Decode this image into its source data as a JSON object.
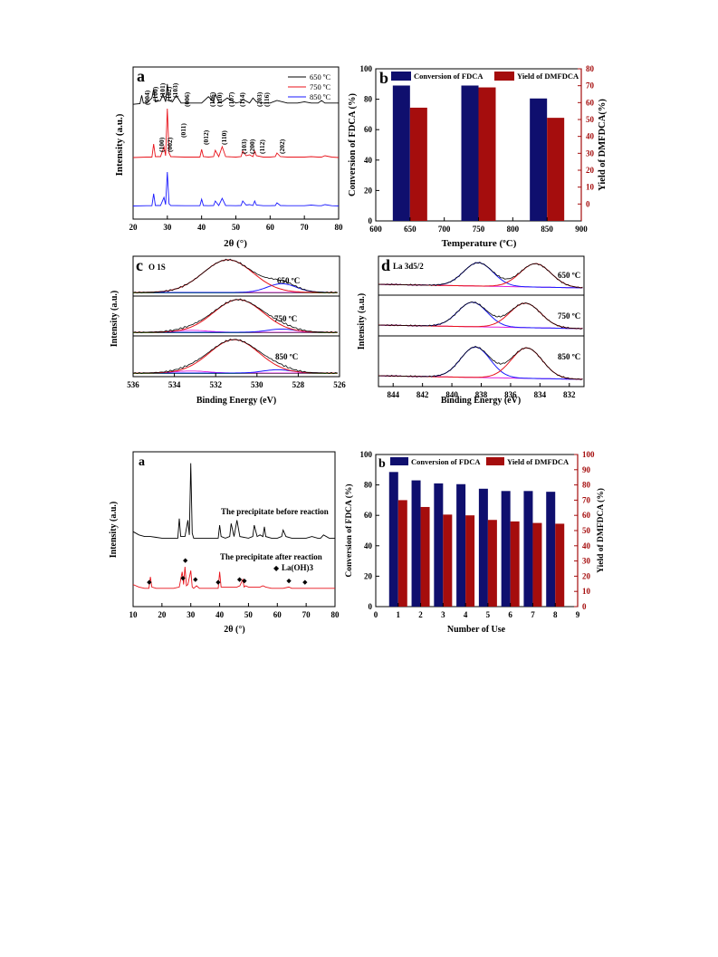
{
  "chart_data": [
    {
      "id": "top_a",
      "type": "line",
      "panel_letter": "a",
      "xlabel": "2θ (°)",
      "ylabel": "Intensity (a.u.)",
      "xlim": [
        20,
        80
      ],
      "xticks": [
        20,
        30,
        40,
        50,
        60,
        70,
        80
      ],
      "legend_position": "top-right",
      "series": [
        {
          "name": "650 ºC",
          "color": "#000000",
          "x": [
            20,
            22,
            22.5,
            23,
            24,
            25.5,
            26,
            26.5,
            28,
            28.7,
            29.5,
            30,
            30.5,
            31.5,
            32.6,
            34,
            36,
            40,
            42,
            43.5,
            44,
            45,
            46,
            47.5,
            50,
            51.5,
            52,
            54,
            55,
            56,
            58,
            60,
            62,
            65,
            68,
            70,
            72,
            74,
            75,
            76,
            78,
            80
          ],
          "y": [
            0.2,
            0.25,
            0.9,
            0.3,
            0.3,
            0.7,
            1.4,
            0.4,
            0.5,
            1.0,
            0.4,
            1.8,
            0.5,
            0.4,
            0.9,
            0.3,
            0.3,
            0.3,
            0.8,
            0.4,
            1.0,
            0.4,
            0.4,
            0.7,
            0.3,
            0.4,
            0.6,
            0.3,
            0.7,
            0.4,
            0.3,
            0.3,
            0.5,
            0.3,
            0.3,
            0.4,
            0.3,
            0.3,
            0.5,
            0.3,
            0.3,
            0.3
          ]
        },
        {
          "name": "750 ºC",
          "color": "#e8121a",
          "x": [
            20,
            24,
            25.5,
            26,
            26.5,
            28,
            29,
            29.5,
            30,
            30.5,
            31,
            35,
            38,
            39.5,
            40,
            40.5,
            42,
            43.5,
            44,
            45,
            46,
            47,
            50,
            51.5,
            52,
            53,
            54,
            55,
            55.5,
            56,
            58,
            60,
            61.5,
            62,
            63,
            65,
            70,
            72,
            74,
            75,
            76,
            78,
            80
          ],
          "y": [
            0.1,
            0.15,
            0.15,
            1.6,
            0.2,
            0.2,
            1.3,
            0.3,
            5.5,
            0.6,
            0.2,
            0.15,
            0.15,
            0.15,
            1.0,
            0.2,
            0.15,
            0.2,
            0.9,
            0.2,
            1.3,
            0.2,
            0.15,
            0.2,
            0.8,
            0.3,
            0.4,
            0.2,
            0.8,
            0.3,
            0.15,
            0.15,
            0.2,
            0.6,
            0.2,
            0.15,
            0.15,
            0.2,
            0.15,
            0.15,
            0.3,
            0.15,
            0.1
          ]
        },
        {
          "name": "850 ºC",
          "color": "#1a1aff",
          "x": [
            20,
            24,
            25.5,
            26,
            26.5,
            28,
            29,
            29.5,
            30,
            30.5,
            31,
            35,
            38,
            39.5,
            40,
            40.5,
            42,
            43.5,
            44,
            45,
            46,
            47,
            50,
            51.5,
            52,
            53,
            54,
            55,
            55.5,
            56,
            58,
            60,
            61.5,
            62,
            63,
            65,
            70,
            72,
            74,
            75,
            76,
            78,
            80
          ],
          "y": [
            0.05,
            0.08,
            0.08,
            1.4,
            0.1,
            0.1,
            1.0,
            0.2,
            3.8,
            0.3,
            0.1,
            0.08,
            0.08,
            0.08,
            0.8,
            0.1,
            0.08,
            0.1,
            0.6,
            0.1,
            0.9,
            0.1,
            0.08,
            0.1,
            0.6,
            0.15,
            0.2,
            0.1,
            0.6,
            0.15,
            0.08,
            0.08,
            0.1,
            0.4,
            0.1,
            0.08,
            0.08,
            0.15,
            0.08,
            0.08,
            0.2,
            0.08,
            0.05
          ]
        }
      ],
      "peak_labels_650": [
        "(004)",
        "(100)",
        "(101)",
        "(102)",
        "(103)",
        "(006)",
        "(106)",
        "(110)",
        "(107)",
        "(114)",
        "(203)",
        "(116)"
      ],
      "peak_labels_750": [
        "(100)",
        "(002)",
        "(011)",
        "(012)",
        "(110)",
        "(103)",
        "(200)",
        "(112)",
        "(202)"
      ]
    },
    {
      "id": "top_b",
      "type": "bar",
      "panel_letter": "b",
      "xlabel": "Temperature (ºC)",
      "ylabel_left": "Conversion of FDCA (%)",
      "ylabel_right": "Yield of DMFDCA(%)",
      "categories": [
        650,
        750,
        850
      ],
      "xlim": [
        600,
        900
      ],
      "xticks": [
        600,
        650,
        700,
        750,
        800,
        850,
        900
      ],
      "ylim_left": [
        0,
        100
      ],
      "yticks_left": [
        0,
        20,
        40,
        60,
        80,
        100
      ],
      "ylim_right": [
        -10,
        80
      ],
      "yticks_right": [
        0,
        10,
        20,
        30,
        40,
        50,
        60,
        70,
        80
      ],
      "series": [
        {
          "name": "Conversion of FDCA",
          "color": "#0f0f6e",
          "axis": "left",
          "values": [
            89,
            89,
            80.5
          ]
        },
        {
          "name": "Yield of DMFDCA",
          "color": "#a50d0d",
          "axis": "right",
          "values": [
            57,
            69,
            51
          ]
        }
      ]
    },
    {
      "id": "top_c",
      "type": "line",
      "panel_letter": "c",
      "panel_title": "O 1S",
      "xlabel": "Binding Energy (eV)",
      "ylabel": "Intensity (a.u.)",
      "xlim": [
        536,
        526
      ],
      "xticks": [
        536,
        534,
        532,
        530,
        528,
        526
      ],
      "subpanels": [
        {
          "label": "650 ºC",
          "main_peak_center": 531.4,
          "secondary_peak_center": 528.8
        },
        {
          "label": "750 ºC",
          "main_peak_center": 530.9,
          "secondary_peak_center": 528.8
        },
        {
          "label": "850 ºC",
          "main_peak_center": 531.1,
          "secondary_peak_center": 529.0
        }
      ]
    },
    {
      "id": "top_d",
      "type": "line",
      "panel_letter": "d",
      "panel_title": "La 3d5/2",
      "xlabel": "Binding Energy (eV)",
      "ylabel": "Intensity (a.u.)",
      "xlim": [
        845,
        831
      ],
      "xticks": [
        844,
        842,
        840,
        838,
        836,
        834,
        832
      ],
      "subpanels": [
        {
          "label": "650 ºC",
          "peak1_center": 838.2,
          "peak2_center": 834.3
        },
        {
          "label": "750 ºC",
          "peak1_center": 838.6,
          "peak2_center": 835.0
        },
        {
          "label": "850 ºC",
          "peak1_center": 838.4,
          "peak2_center": 834.9
        }
      ]
    },
    {
      "id": "bottom_a",
      "type": "line",
      "panel_letter": "a",
      "xlabel": "2θ (°)",
      "ylabel": "Intensity (a.u.)",
      "xlim": [
        10,
        80
      ],
      "xticks": [
        10,
        20,
        30,
        40,
        50,
        60,
        70,
        80
      ],
      "series": [
        {
          "name": "The precipitate before reaction",
          "color": "#000000",
          "x": [
            10,
            12,
            14,
            16,
            18,
            20,
            22,
            24,
            25.5,
            26,
            26.5,
            28,
            29,
            29.5,
            30,
            30.5,
            31,
            35,
            38,
            39.5,
            40,
            40.5,
            42,
            43.5,
            44,
            45,
            46,
            47,
            50,
            51.5,
            52,
            53,
            54,
            55,
            55.5,
            56,
            58,
            60,
            61.5,
            62,
            63,
            65,
            70,
            72,
            74,
            75,
            76,
            78,
            80
          ],
          "y": [
            0.6,
            0.4,
            0.3,
            0.3,
            0.25,
            0.2,
            0.2,
            0.2,
            0.2,
            1.4,
            0.3,
            0.3,
            1.3,
            0.4,
            4.8,
            0.5,
            0.2,
            0.2,
            0.2,
            0.2,
            1.0,
            0.3,
            0.2,
            0.3,
            1.1,
            0.3,
            1.3,
            0.3,
            0.2,
            0.3,
            1.0,
            0.3,
            0.4,
            0.3,
            0.9,
            0.3,
            0.2,
            0.2,
            0.3,
            0.7,
            0.3,
            0.2,
            0.2,
            0.3,
            0.2,
            0.2,
            0.4,
            0.2,
            0.2
          ]
        },
        {
          "name": "The precipitate after reaction",
          "color": "#e8121a",
          "x": [
            10,
            12,
            14,
            15.5,
            16,
            16.5,
            18,
            20,
            22,
            24,
            26,
            27,
            27.5,
            28,
            28.5,
            29,
            30,
            30.5,
            31,
            32,
            33,
            35,
            38,
            39.5,
            40,
            40.5,
            42,
            44,
            46,
            47,
            48,
            48.5,
            49,
            50,
            52,
            54,
            55,
            56,
            58,
            60,
            62,
            64,
            65,
            66,
            68,
            70,
            72,
            74,
            76,
            78,
            80
          ],
          "y": [
            0.6,
            0.4,
            0.3,
            0.3,
            1.2,
            0.4,
            0.3,
            0.3,
            0.3,
            0.3,
            0.4,
            1.6,
            0.6,
            2.0,
            0.5,
            0.6,
            1.7,
            0.4,
            0.3,
            0.5,
            0.3,
            0.3,
            0.3,
            0.3,
            1.6,
            0.4,
            0.4,
            0.4,
            0.4,
            0.5,
            1.0,
            0.4,
            0.5,
            0.4,
            0.4,
            0.4,
            0.5,
            0.4,
            0.3,
            0.3,
            0.3,
            0.4,
            0.3,
            0.3,
            0.3,
            0.3,
            0.3,
            0.3,
            0.3,
            0.3,
            0.3
          ]
        }
      ],
      "legend_marker_label": "La(OH)3",
      "marker_positions_2theta": [
        15.6,
        27.3,
        28.1,
        31.6,
        39.5,
        46.9,
        48.6,
        64,
        69.6
      ]
    },
    {
      "id": "bottom_b",
      "type": "bar",
      "panel_letter": "b",
      "xlabel": "Number of Use",
      "ylabel_left": "Conversion of FDCA (%)",
      "ylabel_right": "Yield of DMFDCA (%)",
      "categories": [
        1,
        2,
        3,
        4,
        5,
        6,
        7,
        8
      ],
      "xlim": [
        0,
        9
      ],
      "xticks": [
        0,
        1,
        2,
        3,
        4,
        5,
        6,
        7,
        8,
        9
      ],
      "ylim_left": [
        0,
        100
      ],
      "yticks_left": [
        0,
        20,
        40,
        60,
        80,
        100
      ],
      "ylim_right": [
        0,
        100
      ],
      "yticks_right": [
        0,
        10,
        20,
        30,
        40,
        50,
        60,
        70,
        80,
        90,
        100
      ],
      "series": [
        {
          "name": "Conversion of FDCA",
          "color": "#0f0f6e",
          "axis": "left",
          "values": [
            88.5,
            83,
            81,
            80.5,
            77.5,
            76,
            76,
            75.5
          ]
        },
        {
          "name": "Yield of DMFDCA",
          "color": "#a50d0d",
          "axis": "right",
          "values": [
            70,
            65.5,
            60.5,
            60,
            57,
            56,
            55,
            54.5
          ]
        }
      ]
    }
  ]
}
